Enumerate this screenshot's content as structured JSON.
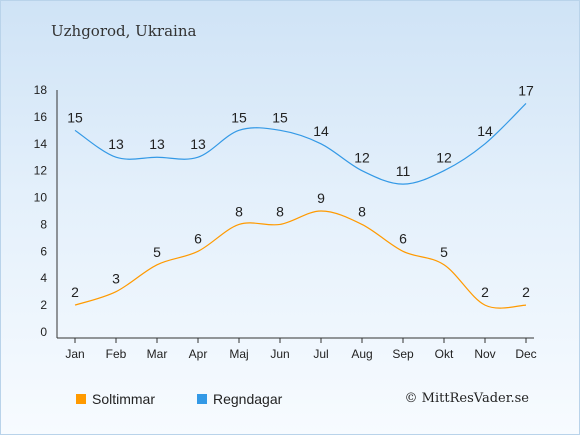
{
  "header": {
    "title": "Uzhgorod, Ukraina"
  },
  "footer": {
    "credit": "© MittResVader.se"
  },
  "chart_data": {
    "type": "line",
    "title": "Uzhgorod, Ukraina",
    "xlabel": "",
    "ylabel": "",
    "categories": [
      "Jan",
      "Feb",
      "Mar",
      "Apr",
      "Maj",
      "Jun",
      "Jul",
      "Aug",
      "Sep",
      "Okt",
      "Nov",
      "Dec"
    ],
    "ylim": [
      0,
      18
    ],
    "yticks": [
      0,
      2,
      4,
      6,
      8,
      10,
      12,
      14,
      16,
      18
    ],
    "grid": false,
    "legend_position": "bottom-left",
    "series": [
      {
        "name": "Soltimmar",
        "color": "#ff9a00",
        "values": [
          2,
          3,
          5,
          6,
          8,
          8,
          9,
          8,
          6,
          5,
          2,
          2
        ]
      },
      {
        "name": "Regndagar",
        "color": "#3399e6",
        "values": [
          15,
          13,
          13,
          13,
          15,
          15,
          14,
          12,
          11,
          12,
          14,
          17
        ]
      }
    ]
  }
}
